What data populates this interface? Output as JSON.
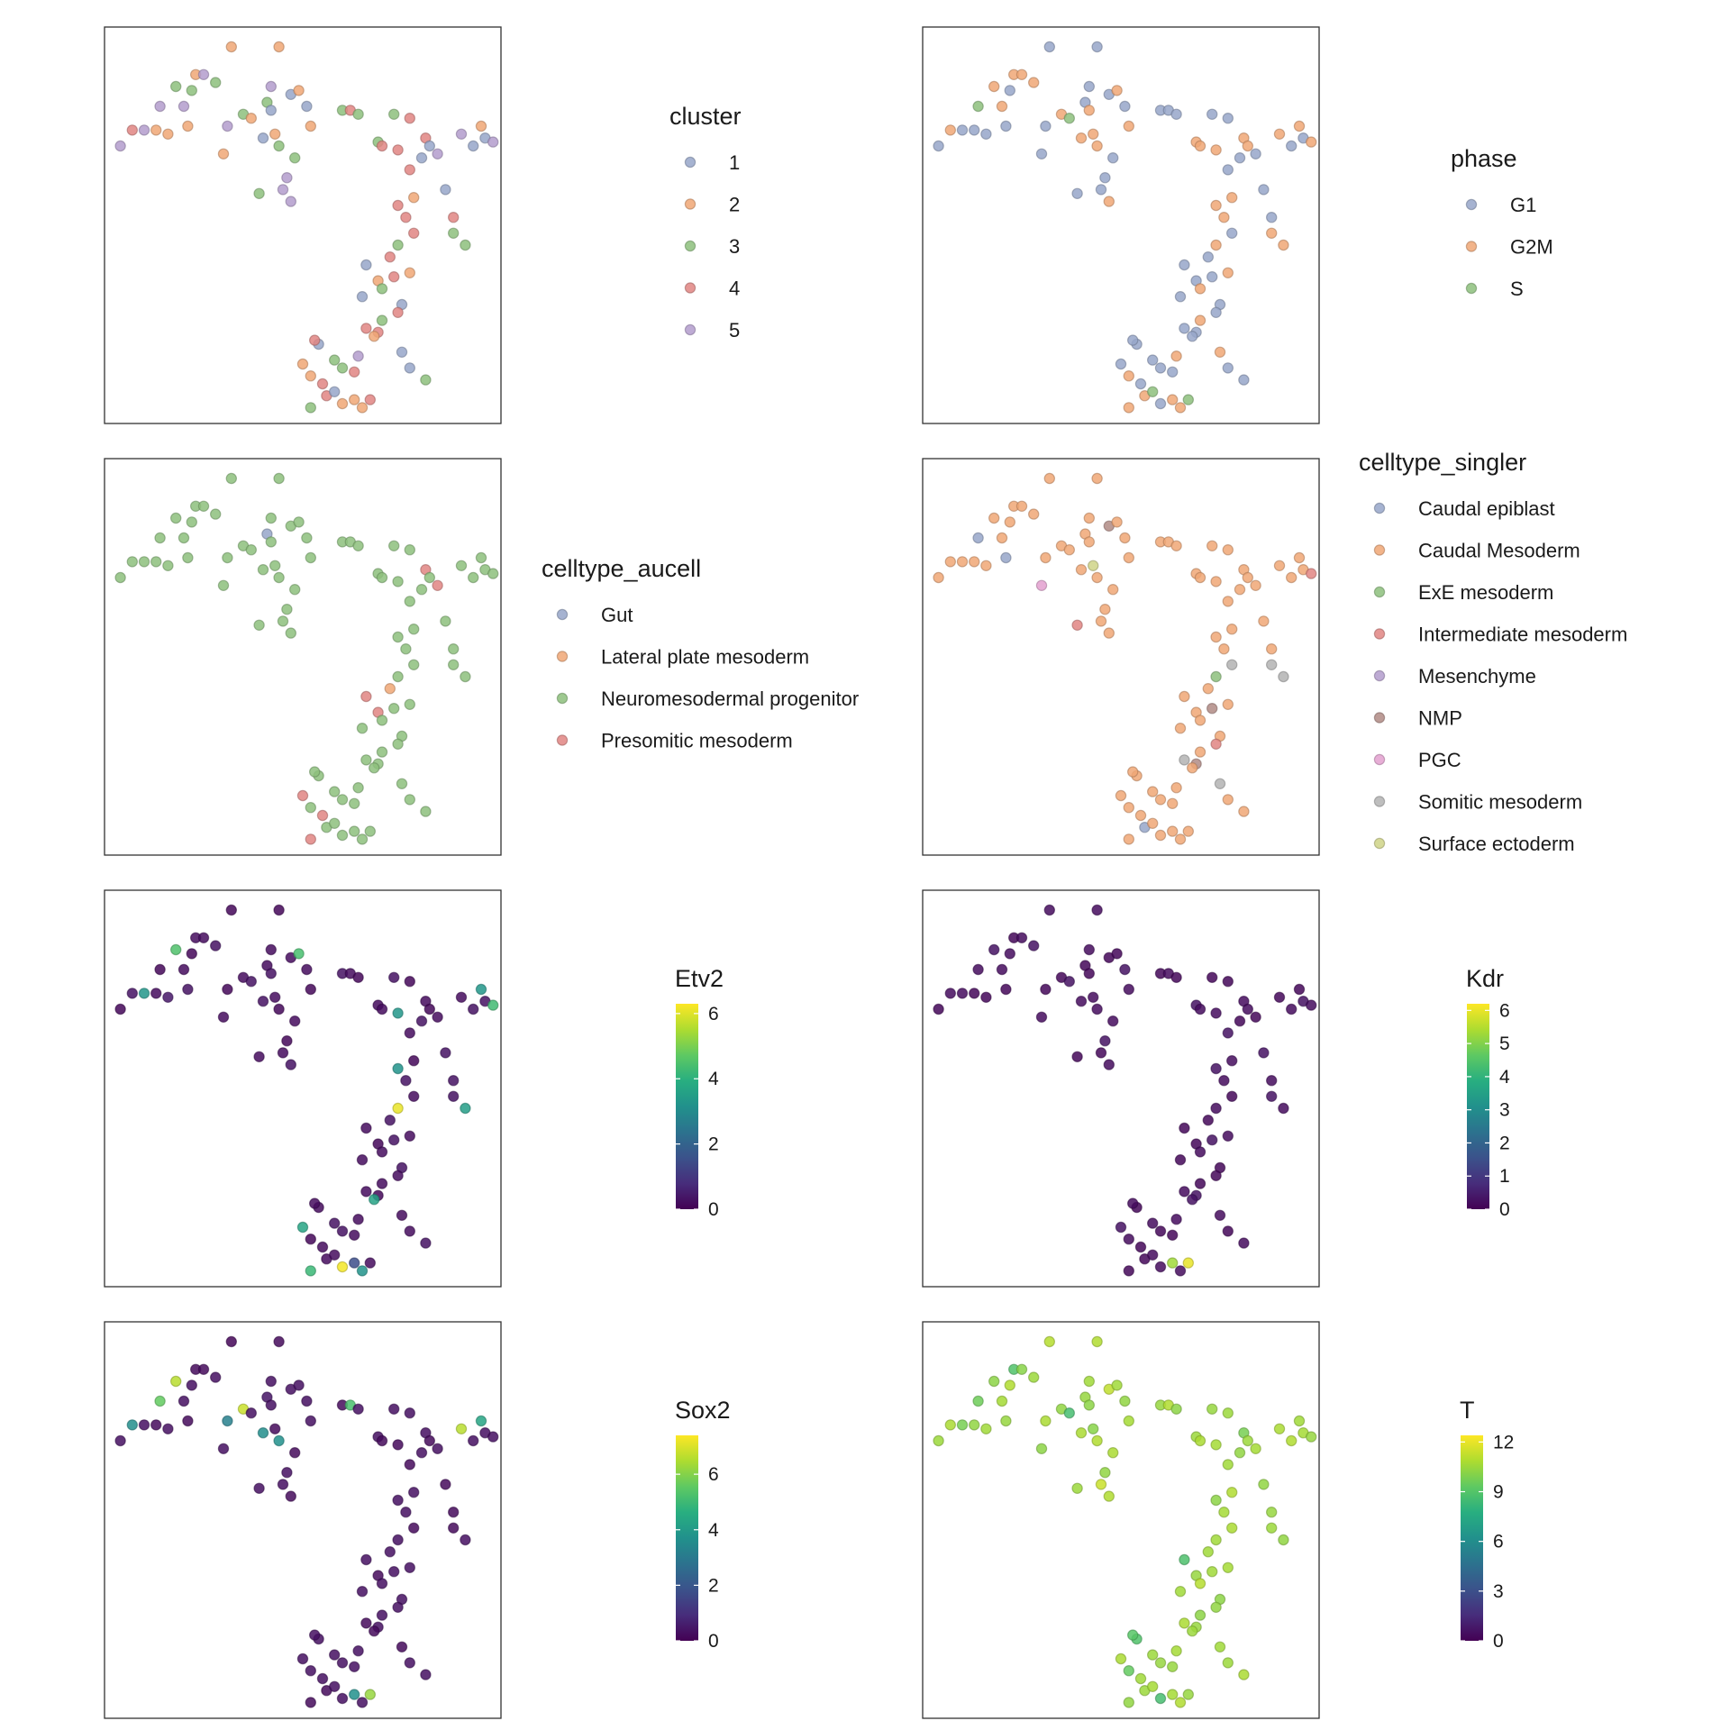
{
  "chart_data": {
    "type": "scatter",
    "embedding": {
      "x": [
        0.04,
        0.07,
        0.1,
        0.13,
        0.14,
        0.16,
        0.18,
        0.2,
        0.21,
        0.22,
        0.23,
        0.25,
        0.28,
        0.3,
        0.31,
        0.32,
        0.35,
        0.37,
        0.4,
        0.41,
        0.42,
        0.42,
        0.43,
        0.44,
        0.45,
        0.46,
        0.47,
        0.47,
        0.48,
        0.49,
        0.51,
        0.52,
        0.6,
        0.62,
        0.64,
        0.69,
        0.7,
        0.73,
        0.74,
        0.77,
        0.77,
        0.78,
        0.8,
        0.81,
        0.82,
        0.84,
        0.86,
        0.88,
        0.9,
        0.93,
        0.95,
        0.96,
        0.98,
        0.65,
        0.44,
        0.39,
        0.74,
        0.76,
        0.78,
        0.74,
        0.66,
        0.88,
        0.91,
        0.72,
        0.77,
        0.69,
        0.73,
        0.7,
        0.75,
        0.66,
        0.74,
        0.69,
        0.75,
        0.77,
        0.81,
        0.7,
        0.68,
        0.64,
        0.6,
        0.52,
        0.55,
        0.63,
        0.6,
        0.56,
        0.65,
        0.67,
        0.58,
        0.52,
        0.58,
        0.54,
        0.5,
        0.53,
        0.63
      ],
      "y": [
        0.3,
        0.26,
        0.26,
        0.26,
        0.2,
        0.27,
        0.15,
        0.2,
        0.25,
        0.16,
        0.12,
        0.12,
        0.14,
        0.32,
        0.25,
        0.05,
        0.22,
        0.23,
        0.28,
        0.19,
        0.15,
        0.21,
        0.27,
        0.3,
        0.41,
        0.38,
        0.44,
        0.17,
        0.33,
        0.16,
        0.2,
        0.25,
        0.21,
        0.21,
        0.22,
        0.29,
        0.3,
        0.22,
        0.31,
        0.23,
        0.36,
        0.43,
        0.33,
        0.28,
        0.3,
        0.32,
        0.41,
        0.48,
        0.27,
        0.3,
        0.25,
        0.28,
        0.29,
        0.68,
        0.05,
        0.42,
        0.45,
        0.48,
        0.52,
        0.55,
        0.6,
        0.52,
        0.55,
        0.58,
        0.62,
        0.64,
        0.63,
        0.66,
        0.7,
        0.76,
        0.72,
        0.77,
        0.82,
        0.86,
        0.89,
        0.74,
        0.78,
        0.83,
        0.86,
        0.88,
        0.9,
        0.94,
        0.95,
        0.93,
        0.96,
        0.94,
        0.92,
        0.96,
        0.84,
        0.8,
        0.85,
        0.79,
        0.87
      ]
    },
    "panels": [
      {
        "kind": "categorical",
        "legend_title": "cluster",
        "categories": [
          "1",
          "2",
          "3",
          "4",
          "5"
        ],
        "colors": [
          "#97A6C9",
          "#F0A775",
          "#8DC07D",
          "#E08582",
          "#B39CCD"
        ],
        "assignments": [
          4,
          3,
          4,
          1,
          4,
          1,
          2,
          4,
          1,
          2,
          1,
          4,
          2,
          1,
          4,
          1,
          2,
          1,
          0,
          2,
          4,
          0,
          1,
          2,
          4,
          4,
          4,
          0,
          2,
          1,
          0,
          1,
          2,
          3,
          2,
          2,
          3,
          2,
          3,
          3,
          3,
          1,
          0,
          3,
          0,
          4,
          0,
          3,
          4,
          0,
          1,
          0,
          4,
          0,
          1,
          2,
          3,
          3,
          3,
          2,
          0,
          2,
          2,
          3,
          1,
          1,
          3,
          2,
          0,
          3,
          3,
          3,
          0,
          0,
          2,
          2,
          1,
          4,
          2,
          1,
          3,
          1,
          1,
          3,
          1,
          3,
          0,
          2,
          2,
          0,
          1,
          3,
          3
        ]
      },
      {
        "kind": "categorical",
        "legend_title": "phase",
        "categories": [
          "G1",
          "G2M",
          "S"
        ],
        "colors": [
          "#97A6C9",
          "#F0A775",
          "#8DC07D"
        ],
        "assignments": [
          0,
          1,
          0,
          0,
          2,
          0,
          1,
          1,
          0,
          0,
          1,
          1,
          1,
          0,
          0,
          0,
          1,
          2,
          1,
          0,
          0,
          1,
          1,
          1,
          0,
          0,
          1,
          0,
          0,
          1,
          0,
          1,
          0,
          0,
          0,
          1,
          1,
          0,
          1,
          0,
          0,
          1,
          0,
          1,
          1,
          0,
          0,
          0,
          1,
          0,
          1,
          0,
          1,
          0,
          0,
          0,
          1,
          1,
          0,
          1,
          0,
          1,
          1,
          0,
          1,
          0,
          0,
          1,
          0,
          0,
          0,
          0,
          1,
          0,
          0,
          1,
          0,
          1,
          0,
          1,
          0,
          1,
          0,
          1,
          1,
          2,
          2,
          1,
          0,
          0,
          0,
          0,
          0
        ]
      },
      {
        "kind": "categorical",
        "legend_title": "celltype_aucell",
        "categories": [
          "Gut",
          "Lateral plate mesoderm",
          "Neuromesodermal progenitor",
          "Presomitic mesoderm"
        ],
        "colors": [
          "#97A6C9",
          "#F0A775",
          "#8DC07D",
          "#E08582"
        ],
        "assignments": [
          2,
          2,
          2,
          2,
          2,
          2,
          2,
          2,
          2,
          2,
          2,
          2,
          2,
          2,
          2,
          2,
          2,
          2,
          2,
          0,
          2,
          2,
          2,
          2,
          2,
          2,
          2,
          2,
          2,
          2,
          2,
          2,
          2,
          2,
          2,
          2,
          2,
          2,
          2,
          2,
          2,
          2,
          2,
          3,
          2,
          3,
          2,
          2,
          2,
          2,
          2,
          2,
          2,
          2,
          2,
          2,
          2,
          2,
          2,
          2,
          3,
          2,
          2,
          1,
          2,
          3,
          2,
          2,
          2,
          2,
          2,
          2,
          2,
          2,
          2,
          2,
          2,
          2,
          2,
          2,
          3,
          2,
          2,
          2,
          2,
          2,
          2,
          3,
          2,
          2,
          3,
          2,
          2
        ]
      },
      {
        "kind": "categorical",
        "legend_title": "celltype_singler",
        "categories": [
          "Caudal epiblast",
          "Caudal Mesoderm",
          "ExE mesoderm",
          "Intermediate mesoderm",
          "Mesenchyme",
          "NMP",
          "PGC",
          "Somitic mesoderm",
          "Surface ectoderm"
        ],
        "colors": [
          "#97A6C9",
          "#F0A775",
          "#8DC07D",
          "#E08582",
          "#B39CCD",
          "#B08B85",
          "#E3A0CF",
          "#B3B3B3",
          "#CFD387"
        ],
        "assignments": [
          1,
          1,
          1,
          1,
          0,
          1,
          1,
          1,
          0,
          1,
          1,
          1,
          1,
          6,
          1,
          1,
          1,
          1,
          1,
          1,
          1,
          1,
          8,
          1,
          1,
          1,
          1,
          5,
          1,
          1,
          1,
          1,
          1,
          1,
          1,
          1,
          1,
          1,
          1,
          1,
          1,
          1,
          1,
          1,
          1,
          1,
          1,
          1,
          1,
          1,
          1,
          1,
          3,
          1,
          1,
          3,
          1,
          1,
          7,
          2,
          1,
          7,
          7,
          1,
          1,
          1,
          5,
          1,
          1,
          7,
          3,
          5,
          7,
          1,
          1,
          1,
          1,
          1,
          1,
          1,
          1,
          1,
          1,
          0,
          1,
          1,
          1,
          1,
          1,
          1,
          1,
          1,
          1
        ]
      },
      {
        "kind": "continuous",
        "legend_title": "Etv2",
        "ticks": [
          0,
          2,
          4,
          6
        ],
        "range": [
          0,
          6.3
        ],
        "values": [
          0.1,
          0.3,
          3.3,
          0.2,
          0.1,
          0.4,
          4.5,
          0.2,
          0.3,
          0.1,
          0.2,
          0.2,
          0.3,
          0.2,
          0.1,
          0.1,
          0.2,
          0.3,
          0.3,
          0.2,
          0.2,
          0.3,
          0.2,
          0.1,
          0.2,
          0.1,
          0.3,
          0.2,
          0.2,
          4.4,
          0.2,
          0.1,
          0.3,
          0.2,
          0.1,
          0.2,
          0.2,
          0.3,
          3.3,
          0.1,
          0.2,
          0.1,
          0.3,
          0.2,
          0.1,
          0.2,
          0.3,
          0.3,
          0.2,
          0.3,
          3.3,
          0.3,
          4.3,
          0.2,
          0.1,
          0.2,
          3.2,
          0.3,
          0.2,
          6.1,
          0.2,
          0.3,
          3.5,
          0.3,
          0.2,
          0.1,
          0.3,
          0.2,
          0.3,
          0.2,
          0.2,
          0.1,
          0.2,
          0.2,
          0.3,
          0.2,
          3.6,
          0.2,
          0.3,
          0.1,
          0.2,
          1.5,
          6.2,
          0.2,
          3.2,
          0.2,
          0.2,
          4.2,
          0.3,
          0.2,
          3.7,
          0.2,
          0.2
        ]
      },
      {
        "kind": "continuous",
        "legend_title": "Kdr",
        "ticks": [
          0,
          1,
          2,
          3,
          4,
          5,
          6
        ],
        "range": [
          0,
          6.2
        ],
        "values": [
          0.1,
          0.2,
          0.2,
          0.1,
          0.2,
          0.1,
          0.3,
          0.2,
          0.1,
          0.2,
          0.1,
          0.2,
          0.3,
          0.2,
          0.1,
          0.2,
          0.1,
          0.3,
          0.2,
          0.1,
          0.2,
          0.1,
          0.2,
          0.2,
          0.1,
          0.3,
          0.2,
          0.1,
          0.2,
          0.1,
          0.3,
          0.2,
          0.1,
          0.2,
          0.1,
          0.3,
          0.2,
          0.1,
          0.2,
          0.1,
          0.3,
          0.2,
          0.1,
          0.2,
          0.2,
          0.1,
          0.3,
          0.2,
          0.1,
          0.2,
          0.1,
          0.3,
          0.2,
          0.1,
          0.2,
          0.1,
          0.3,
          0.2,
          0.1,
          0.2,
          0.1,
          0.3,
          0.2,
          0.1,
          0.2,
          0.1,
          0.3,
          0.2,
          0.1,
          0.2,
          0.1,
          0.3,
          0.2,
          0.1,
          0.2,
          0.1,
          0.3,
          0.2,
          0.1,
          0.2,
          0.1,
          5.3,
          0.2,
          0.1,
          0.2,
          6.0,
          0.2,
          0.1,
          0.2,
          0.1,
          0.3,
          0.2,
          0.1
        ]
      },
      {
        "kind": "continuous",
        "legend_title": "Sox2",
        "ticks": [
          0,
          2,
          4,
          6
        ],
        "range": [
          0,
          7.4
        ],
        "values": [
          0.3,
          3.6,
          0.3,
          0.2,
          5.6,
          0.3,
          6.6,
          0.3,
          0.2,
          0.3,
          0.2,
          0.2,
          0.3,
          0.3,
          3.2,
          0.1,
          6.8,
          0.3,
          3.6,
          0.4,
          0.3,
          0.3,
          0.2,
          3.7,
          0.3,
          0.3,
          0.2,
          0.3,
          0.2,
          0.3,
          0.3,
          0.3,
          0.2,
          5.2,
          0.3,
          0.3,
          0.2,
          0.3,
          0.2,
          0.3,
          0.2,
          0.3,
          0.3,
          0.3,
          0.2,
          0.3,
          0.2,
          0.2,
          6.6,
          0.3,
          4.3,
          0.3,
          0.3,
          0.3,
          0.2,
          0.3,
          0.3,
          0.3,
          0.2,
          0.3,
          0.3,
          0.2,
          0.3,
          0.3,
          0.3,
          0.2,
          0.3,
          0.3,
          0.3,
          0.2,
          0.3,
          0.3,
          0.2,
          0.3,
          0.3,
          0.3,
          0.2,
          0.3,
          0.3,
          0.3,
          0.3,
          3.7,
          0.3,
          0.2,
          0.3,
          6.2,
          0.3,
          0.2,
          0.3,
          0.3,
          0.3,
          0.3,
          0.3
        ]
      },
      {
        "kind": "continuous",
        "legend_title": "T",
        "ticks": [
          0,
          3,
          6,
          9,
          12
        ],
        "range": [
          0,
          12.4
        ],
        "values": [
          10.5,
          10.8,
          9.8,
          10.3,
          9.6,
          10.6,
          10.2,
          10.7,
          10.4,
          10.9,
          8.9,
          10.1,
          10.5,
          10.2,
          10.8,
          11.0,
          10.3,
          8.6,
          10.8,
          10.4,
          10.6,
          10.2,
          10.1,
          10.9,
          11.4,
          10.3,
          10.9,
          11.2,
          10.8,
          10.6,
          10.3,
          10.7,
          10.4,
          10.9,
          10.2,
          10.5,
          10.8,
          10.4,
          10.7,
          10.5,
          10.6,
          10.9,
          10.3,
          9.8,
          10.5,
          10.7,
          10.3,
          10.4,
          10.8,
          10.9,
          10.6,
          10.7,
          10.4,
          10.6,
          10.9,
          10.5,
          10.2,
          10.7,
          10.8,
          10.6,
          8.8,
          10.5,
          10.3,
          10.6,
          10.7,
          10.4,
          10.6,
          11.0,
          10.2,
          10.8,
          10.3,
          10.4,
          10.6,
          10.5,
          10.8,
          10.2,
          10.5,
          10.7,
          10.4,
          9.4,
          10.6,
          10.7,
          8.6,
          10.5,
          10.9,
          10.4,
          10.7,
          10.3,
          10.5,
          8.9,
          10.8,
          9.1,
          10.4
        ]
      }
    ]
  }
}
